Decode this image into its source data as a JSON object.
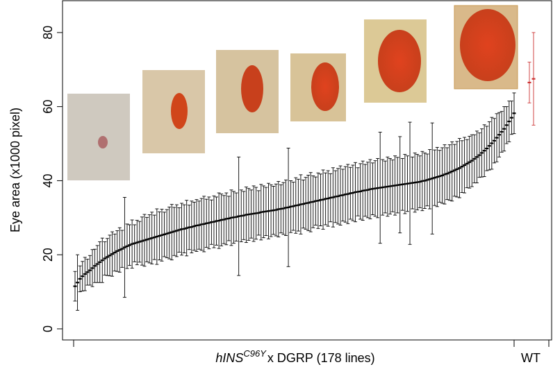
{
  "chart_data": {
    "type": "errorbar",
    "ylabel": "Eye area (x1000 pixel)",
    "xlabel": {
      "gene": "hINS",
      "allele": "C96Y",
      "rest": "x DGRP (178 lines)"
    },
    "ylim": [
      -3,
      88.6
    ],
    "yticks": [
      0,
      20,
      40,
      60,
      80
    ],
    "series": [
      {
        "color": "#000000",
        "values": [
          11.5,
          12.5,
          13.5,
          14.2,
          14.8,
          15.3,
          15.8,
          16.4,
          17.0,
          17.5,
          18.0,
          18.5,
          19.0,
          19.4,
          19.8,
          20.2,
          20.6,
          21.0,
          21.3,
          21.6,
          22.0,
          22.3,
          22.6,
          22.9,
          23.1,
          23.3,
          23.5,
          23.7,
          23.9,
          24.1,
          24.3,
          24.5,
          24.7,
          24.9,
          25.1,
          25.3,
          25.5,
          25.7,
          25.9,
          26.1,
          26.3,
          26.5,
          26.7,
          26.9,
          27.0,
          27.2,
          27.4,
          27.5,
          27.7,
          27.9,
          28.0,
          28.2,
          28.3,
          28.5,
          28.6,
          28.8,
          28.9,
          29.1,
          29.2,
          29.4,
          29.5,
          29.7,
          29.8,
          30.0,
          30.1,
          30.2,
          30.4,
          30.5,
          30.6,
          30.8,
          30.9,
          31.0,
          31.1,
          31.2,
          31.3,
          31.5,
          31.6,
          31.7,
          31.8,
          31.9,
          32.0,
          32.1,
          32.3,
          32.4,
          32.5,
          32.7,
          32.8,
          33.0,
          33.1,
          33.3,
          33.4,
          33.6,
          33.7,
          33.9,
          34.0,
          34.2,
          34.3,
          34.5,
          34.6,
          34.8,
          34.9,
          35.1,
          35.2,
          35.4,
          35.5,
          35.7,
          35.8,
          36.0,
          36.1,
          36.3,
          36.4,
          36.6,
          36.7,
          36.9,
          37.0,
          37.1,
          37.3,
          37.4,
          37.5,
          37.7,
          37.8,
          37.9,
          38.0,
          38.1,
          38.2,
          38.3,
          38.4,
          38.5,
          38.6,
          38.7,
          38.8,
          38.9,
          39.0,
          39.1,
          39.2,
          39.3,
          39.4,
          39.5,
          39.6,
          39.7,
          39.9,
          40.0,
          40.2,
          40.4,
          40.6,
          40.8,
          41.0,
          41.2,
          41.4,
          41.7,
          41.9,
          42.2,
          42.5,
          42.8,
          43.1,
          43.4,
          43.8,
          44.2,
          44.6,
          45.0,
          45.4,
          45.9,
          46.4,
          46.9,
          47.5,
          48.1,
          48.7,
          49.4,
          50.1,
          50.8,
          51.6,
          52.4,
          53.2,
          54.0,
          55.0,
          56.0,
          57.0,
          58.2
        ],
        "errors": [
          4.0,
          7.5,
          3.5,
          4.0,
          4.5,
          3.5,
          4.0,
          5.0,
          4.5,
          5.0,
          5.5,
          6.0,
          4.5,
          5.0,
          5.5,
          6.0,
          5.0,
          5.5,
          6.0,
          5.0,
          13.5,
          6.0,
          5.5,
          6.5,
          5.0,
          6.0,
          5.5,
          6.5,
          7.0,
          6.0,
          6.5,
          7.0,
          6.0,
          7.5,
          6.5,
          7.0,
          6.0,
          6.5,
          7.0,
          7.5,
          6.5,
          7.0,
          6.0,
          7.0,
          6.5,
          7.5,
          6.0,
          7.0,
          6.5,
          7.0,
          6.5,
          7.0,
          7.5,
          6.5,
          7.0,
          6.0,
          7.0,
          6.5,
          7.5,
          7.0,
          6.5,
          7.0,
          6.0,
          7.5,
          7.0,
          6.5,
          16.0,
          7.0,
          6.5,
          7.5,
          7.0,
          6.5,
          7.5,
          7.0,
          6.0,
          7.5,
          7.0,
          6.5,
          7.5,
          7.0,
          6.5,
          7.0,
          7.5,
          6.5,
          7.0,
          7.5,
          16.0,
          7.0,
          6.5,
          7.5,
          7.0,
          8.0,
          6.5,
          7.0,
          7.5,
          8.0,
          7.0,
          6.5,
          7.5,
          7.0,
          8.0,
          7.0,
          7.5,
          6.5,
          8.0,
          7.0,
          7.5,
          8.0,
          7.0,
          7.5,
          8.0,
          7.0,
          7.5,
          8.0,
          6.5,
          7.5,
          8.0,
          7.0,
          7.5,
          8.0,
          7.0,
          7.5,
          8.0,
          15.0,
          7.5,
          7.0,
          8.0,
          7.5,
          7.0,
          8.0,
          7.5,
          13.0,
          7.0,
          8.0,
          7.5,
          16.5,
          7.0,
          8.0,
          7.5,
          7.0,
          8.0,
          7.5,
          7.0,
          8.0,
          15.0,
          7.5,
          8.0,
          7.0,
          7.5,
          8.0,
          7.0,
          7.5,
          8.0,
          7.0,
          7.5,
          8.0,
          7.0,
          7.5,
          6.5,
          7.0,
          7.0,
          6.5,
          7.0,
          6.0,
          6.5,
          7.0,
          6.0,
          6.5,
          7.0,
          6.0,
          6.5,
          6.0,
          5.5,
          6.0,
          5.0,
          5.5,
          4.5,
          5.5
        ]
      },
      {
        "category": "WT",
        "color": "#cc3333",
        "values": [
          66.5,
          67.5
        ],
        "errors": [
          5.5,
          12.5
        ]
      }
    ]
  }
}
